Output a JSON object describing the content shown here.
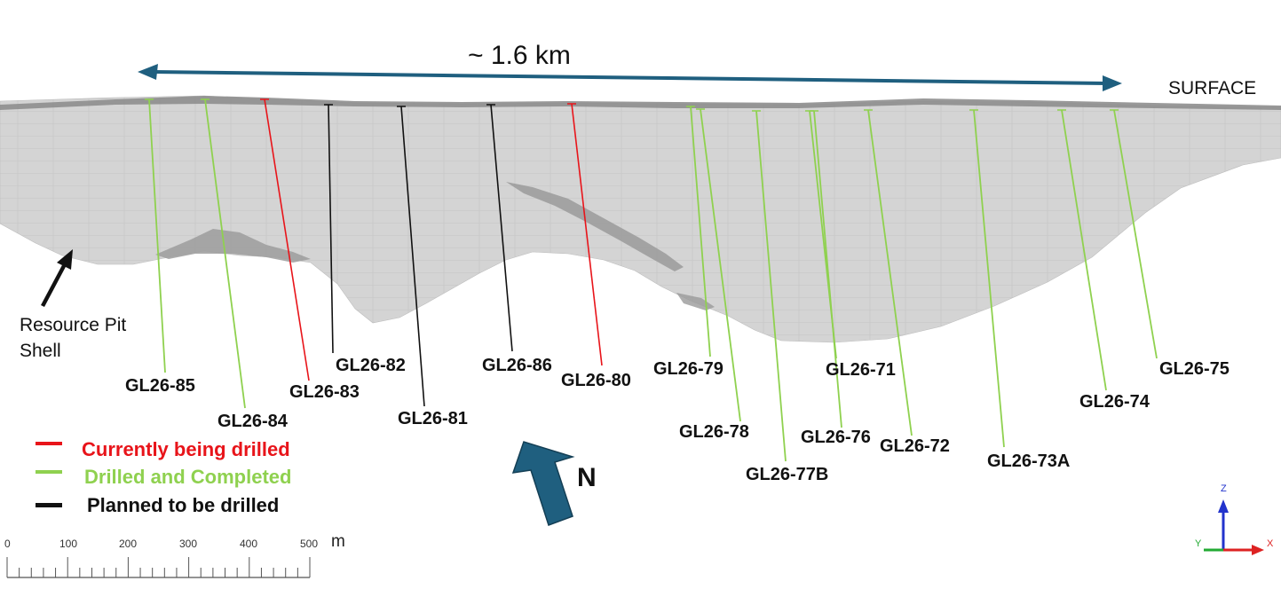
{
  "width_label": "~ 1.6 km",
  "surface_label": "SURFACE",
  "pit_label_line1": "Resource Pit",
  "pit_label_line2": "Shell",
  "north_label": "N",
  "legend": [
    {
      "label": "Currently being drilled",
      "color": "#e8141a",
      "text_color": "#e8141a"
    },
    {
      "label": "Drilled and Completed",
      "color": "#8fd14f",
      "text_color": "#8fd14f"
    },
    {
      "label": "Planned to be drilled",
      "color": "#111111",
      "text_color": "#111111"
    }
  ],
  "scale": {
    "ticks": [
      "0",
      "100",
      "200",
      "300",
      "400",
      "500"
    ],
    "unit": "m"
  },
  "axes_triad": {
    "z": "Z",
    "x": "X",
    "y": "Y"
  },
  "holes": [
    {
      "id": "GL26-85",
      "status": "completed"
    },
    {
      "id": "GL26-84",
      "status": "completed"
    },
    {
      "id": "GL26-83",
      "status": "drilling"
    },
    {
      "id": "GL26-82",
      "status": "planned"
    },
    {
      "id": "GL26-81",
      "status": "planned"
    },
    {
      "id": "GL26-86",
      "status": "planned"
    },
    {
      "id": "GL26-80",
      "status": "drilling"
    },
    {
      "id": "GL26-79",
      "status": "completed"
    },
    {
      "id": "GL26-78",
      "status": "completed"
    },
    {
      "id": "GL26-77B",
      "status": "completed"
    },
    {
      "id": "GL26-71",
      "status": "completed"
    },
    {
      "id": "GL26-76",
      "status": "completed"
    },
    {
      "id": "GL26-72",
      "status": "completed"
    },
    {
      "id": "GL26-73A",
      "status": "completed"
    },
    {
      "id": "GL26-74",
      "status": "completed"
    },
    {
      "id": "GL26-75",
      "status": "completed"
    }
  ],
  "colors": {
    "arrow": "#1f5f7f",
    "pit_fill": "#d2d2d2",
    "pit_dark": "#8e8e8e",
    "completed": "#8fd14f",
    "drilling": "#e8141a",
    "planned": "#111111"
  }
}
